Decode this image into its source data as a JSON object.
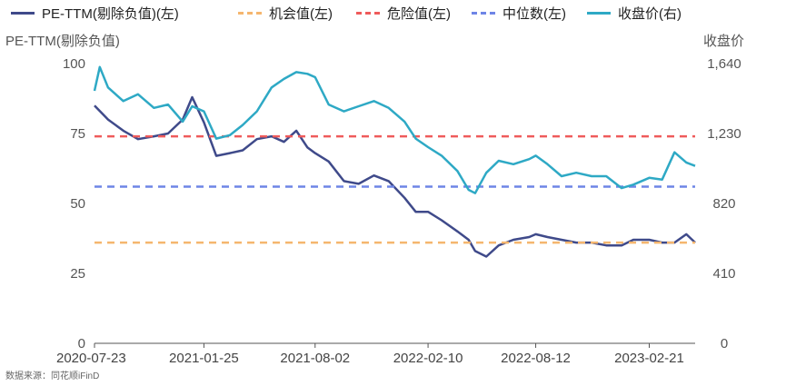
{
  "chart_data": {
    "type": "line",
    "y_left_label": "PE-TTM(剔除负值)",
    "y_right_label": "收盘价",
    "y_left_ticks": [
      "0",
      "25",
      "50",
      "75",
      "100"
    ],
    "y_right_ticks": [
      "0",
      "410",
      "820",
      "1,230",
      "1,640"
    ],
    "y_left_range": [
      0,
      100
    ],
    "y_right_range": [
      0,
      1640
    ],
    "x_ticks": [
      "2020-07-23",
      "2021-01-25",
      "2021-08-02",
      "2022-02-10",
      "2022-08-12",
      "2023-02-21"
    ],
    "series": [
      {
        "name": "PE-TTM(剔除负值)(左)",
        "axis": "left",
        "style": "solid",
        "color": "#3f4a8a",
        "x": [
          "2020-07-23",
          "2020-08-15",
          "2020-09-10",
          "2020-10-05",
          "2020-11-01",
          "2020-11-25",
          "2020-12-20",
          "2021-01-05",
          "2021-01-25",
          "2021-02-15",
          "2021-03-10",
          "2021-04-01",
          "2021-04-25",
          "2021-05-20",
          "2021-06-10",
          "2021-07-01",
          "2021-07-20",
          "2021-08-02",
          "2021-08-25",
          "2021-09-20",
          "2021-10-15",
          "2021-11-10",
          "2021-12-05",
          "2022-01-01",
          "2022-01-20",
          "2022-02-10",
          "2022-03-05",
          "2022-04-01",
          "2022-04-20",
          "2022-05-01",
          "2022-05-20",
          "2022-06-10",
          "2022-07-05",
          "2022-08-01",
          "2022-08-12",
          "2022-09-01",
          "2022-09-25",
          "2022-10-20",
          "2022-11-15",
          "2022-12-10",
          "2023-01-05",
          "2023-01-25",
          "2023-02-21",
          "2023-03-15",
          "2023-04-05",
          "2023-04-25",
          "2023-05-10"
        ],
        "values": [
          85,
          80,
          76,
          73,
          74,
          75,
          80,
          88,
          79,
          67,
          68,
          69,
          73,
          74,
          72,
          76,
          70,
          68,
          65,
          58,
          57,
          60,
          58,
          52,
          47,
          47,
          44,
          40,
          37,
          33,
          31,
          35,
          37,
          38,
          39,
          38,
          37,
          36,
          36,
          35,
          35,
          37,
          37,
          36,
          36,
          39,
          36
        ]
      },
      {
        "name": "机会值(左)",
        "axis": "left",
        "style": "dashed",
        "color": "#f5b66e",
        "x": [
          "2020-07-23",
          "2023-05-10"
        ],
        "values": [
          36,
          36
        ]
      },
      {
        "name": "危险值(左)",
        "axis": "left",
        "style": "dashed",
        "color": "#ef5b5b",
        "x": [
          "2020-07-23",
          "2023-05-10"
        ],
        "values": [
          74,
          74
        ]
      },
      {
        "name": "中位数(左)",
        "axis": "left",
        "style": "dashed",
        "color": "#6e85e6",
        "x": [
          "2020-07-23",
          "2023-05-10"
        ],
        "values": [
          56,
          56
        ]
      },
      {
        "name": "收盘价(右)",
        "axis": "right",
        "style": "solid",
        "color": "#2ea9c5",
        "x": [
          "2020-07-23",
          "2020-08-01",
          "2020-08-15",
          "2020-09-10",
          "2020-10-05",
          "2020-11-01",
          "2020-11-25",
          "2020-12-20",
          "2021-01-05",
          "2021-01-25",
          "2021-02-15",
          "2021-03-10",
          "2021-04-01",
          "2021-04-25",
          "2021-05-20",
          "2021-06-10",
          "2021-07-01",
          "2021-07-20",
          "2021-08-02",
          "2021-08-25",
          "2021-09-20",
          "2021-10-15",
          "2021-11-10",
          "2021-12-05",
          "2022-01-01",
          "2022-01-20",
          "2022-02-10",
          "2022-03-05",
          "2022-04-01",
          "2022-04-20",
          "2022-05-01",
          "2022-05-20",
          "2022-06-10",
          "2022-07-05",
          "2022-08-01",
          "2022-08-12",
          "2022-09-01",
          "2022-09-25",
          "2022-10-20",
          "2022-11-15",
          "2022-12-10",
          "2023-01-05",
          "2023-01-25",
          "2023-02-21",
          "2023-03-15",
          "2023-04-05",
          "2023-04-25",
          "2023-05-10"
        ],
        "values": [
          1480,
          1620,
          1500,
          1420,
          1460,
          1380,
          1400,
          1300,
          1390,
          1360,
          1200,
          1220,
          1280,
          1360,
          1500,
          1550,
          1590,
          1580,
          1560,
          1400,
          1360,
          1390,
          1420,
          1380,
          1300,
          1200,
          1150,
          1100,
          1010,
          900,
          880,
          1000,
          1070,
          1050,
          1080,
          1100,
          1050,
          980,
          1000,
          980,
          980,
          910,
          930,
          970,
          960,
          1120,
          1060,
          1040
        ]
      }
    ]
  },
  "source": "数据来源：同花顺iFinD"
}
